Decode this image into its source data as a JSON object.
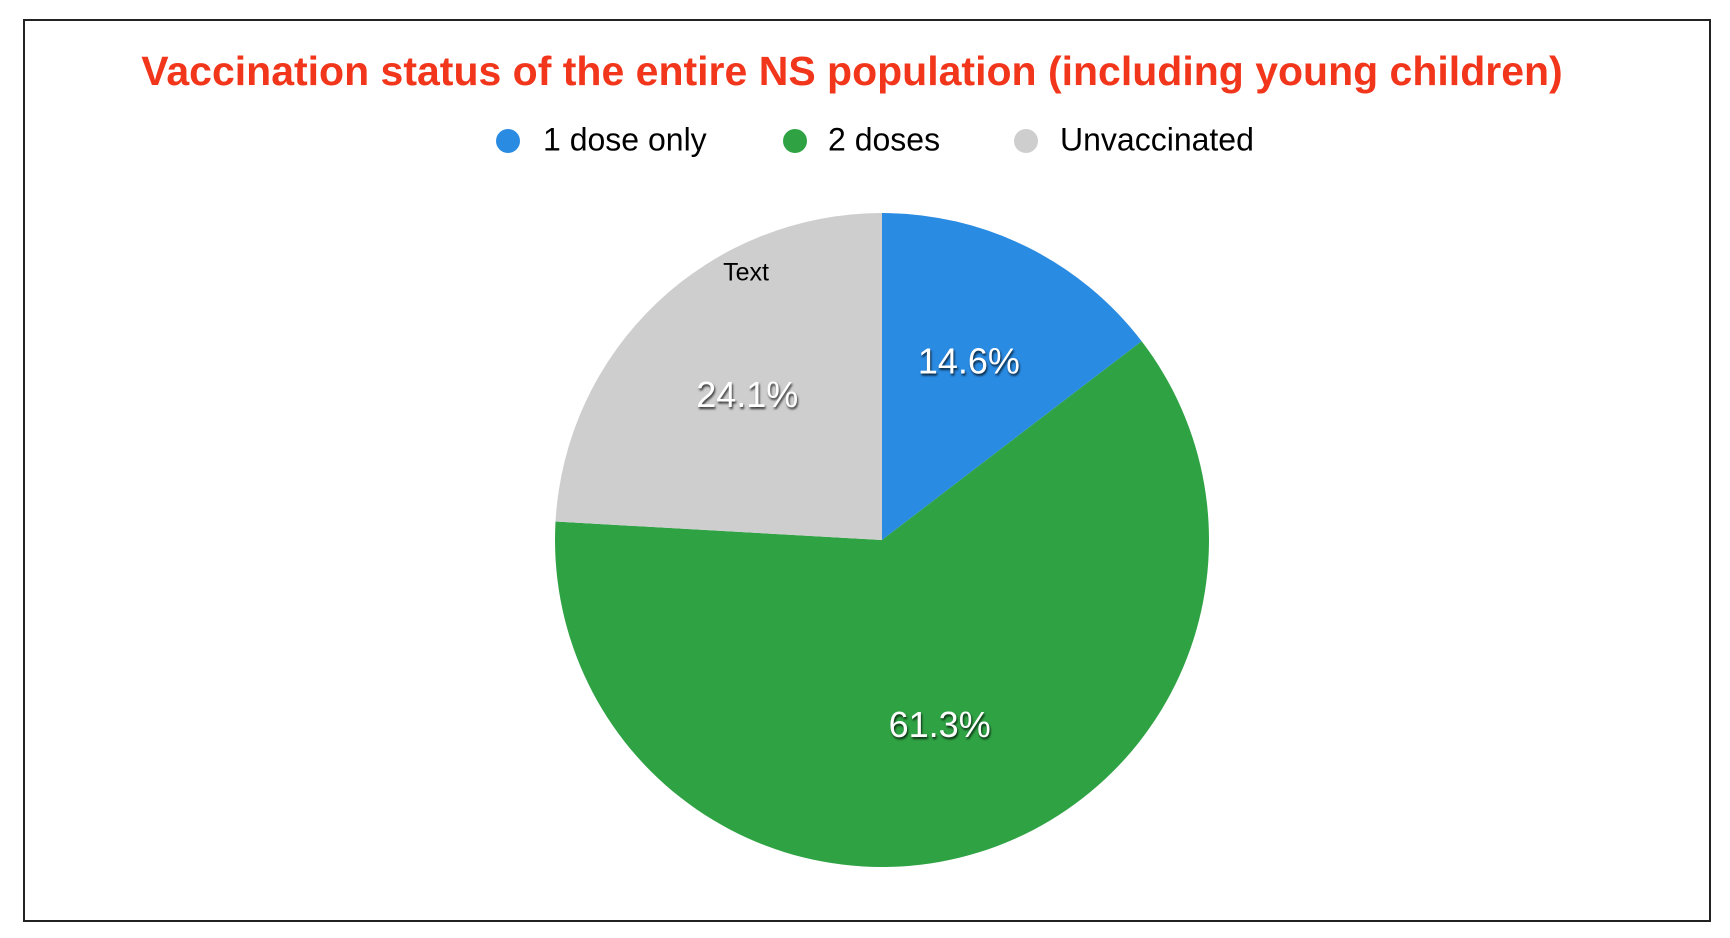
{
  "chart_data": {
    "type": "pie",
    "title": "Vaccination status of the entire NS population (including young children)",
    "categories": [
      "1 dose only",
      "2 doses",
      "Unvaccinated"
    ],
    "values": [
      14.6,
      61.3,
      24.1
    ],
    "value_labels": [
      "14.6%",
      "61.3%",
      "24.1%"
    ],
    "colors": [
      "#2a8be3",
      "#2fa344",
      "#cecece"
    ],
    "annotation": "Text"
  }
}
